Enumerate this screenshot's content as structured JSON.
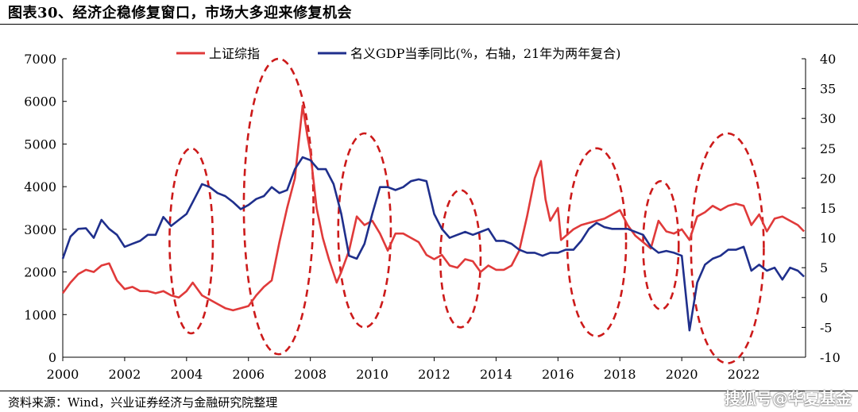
{
  "header": {
    "title": "图表30、经济企稳修复窗口，市场大多迎来修复机会"
  },
  "footer": {
    "source": "资料来源：Wind，兴业证券经济与金融研究院整理",
    "watermark": "搜狐号@华夏基金"
  },
  "chart_data": {
    "type": "line",
    "title": "",
    "x_ticks": [
      "2000",
      "2002",
      "2004",
      "2006",
      "2008",
      "2010",
      "2012",
      "2014",
      "2016",
      "2018",
      "2020",
      "2022"
    ],
    "xlim": [
      2000,
      2024
    ],
    "y_left": {
      "ylim": [
        0,
        7000
      ],
      "ticks": [
        "0",
        "1000",
        "2000",
        "3000",
        "4000",
        "5000",
        "6000",
        "7000"
      ]
    },
    "y_right": {
      "ylim": [
        -10,
        40
      ],
      "ticks": [
        "-10",
        "-5",
        "0",
        "5",
        "10",
        "15",
        "20",
        "25",
        "30",
        "35",
        "40"
      ]
    },
    "grid": false,
    "legend_position": "top",
    "series": [
      {
        "name": "上证综指",
        "axis": "left",
        "color": "#e03a3a",
        "points": [
          [
            2000.0,
            1500
          ],
          [
            2000.25,
            1750
          ],
          [
            2000.5,
            1950
          ],
          [
            2000.75,
            2050
          ],
          [
            2001.0,
            2000
          ],
          [
            2001.25,
            2150
          ],
          [
            2001.5,
            2200
          ],
          [
            2001.75,
            1800
          ],
          [
            2002.0,
            1600
          ],
          [
            2002.25,
            1650
          ],
          [
            2002.5,
            1550
          ],
          [
            2002.75,
            1550
          ],
          [
            2003.0,
            1500
          ],
          [
            2003.25,
            1550
          ],
          [
            2003.5,
            1450
          ],
          [
            2003.75,
            1400
          ],
          [
            2004.0,
            1550
          ],
          [
            2004.2,
            1750
          ],
          [
            2004.5,
            1450
          ],
          [
            2004.75,
            1350
          ],
          [
            2005.0,
            1250
          ],
          [
            2005.25,
            1150
          ],
          [
            2005.5,
            1100
          ],
          [
            2005.75,
            1150
          ],
          [
            2006.0,
            1200
          ],
          [
            2006.25,
            1450
          ],
          [
            2006.5,
            1650
          ],
          [
            2006.75,
            1800
          ],
          [
            2007.0,
            2700
          ],
          [
            2007.25,
            3500
          ],
          [
            2007.5,
            4200
          ],
          [
            2007.75,
            5900
          ],
          [
            2007.9,
            5200
          ],
          [
            2008.0,
            4800
          ],
          [
            2008.2,
            3500
          ],
          [
            2008.4,
            2800
          ],
          [
            2008.6,
            2300
          ],
          [
            2008.85,
            1750
          ],
          [
            2009.0,
            2000
          ],
          [
            2009.25,
            2500
          ],
          [
            2009.5,
            3300
          ],
          [
            2009.75,
            3100
          ],
          [
            2010.0,
            3200
          ],
          [
            2010.25,
            2900
          ],
          [
            2010.5,
            2500
          ],
          [
            2010.75,
            2900
          ],
          [
            2011.0,
            2900
          ],
          [
            2011.25,
            2800
          ],
          [
            2011.5,
            2700
          ],
          [
            2011.75,
            2400
          ],
          [
            2012.0,
            2300
          ],
          [
            2012.25,
            2400
          ],
          [
            2012.5,
            2150
          ],
          [
            2012.75,
            2100
          ],
          [
            2013.0,
            2300
          ],
          [
            2013.25,
            2250
          ],
          [
            2013.5,
            2000
          ],
          [
            2013.75,
            2150
          ],
          [
            2014.0,
            2050
          ],
          [
            2014.25,
            2050
          ],
          [
            2014.5,
            2150
          ],
          [
            2014.75,
            2500
          ],
          [
            2015.0,
            3300
          ],
          [
            2015.25,
            4200
          ],
          [
            2015.45,
            4600
          ],
          [
            2015.6,
            3700
          ],
          [
            2015.75,
            3200
          ],
          [
            2016.0,
            3500
          ],
          [
            2016.1,
            2750
          ],
          [
            2016.5,
            3000
          ],
          [
            2016.75,
            3100
          ],
          [
            2017.0,
            3150
          ],
          [
            2017.25,
            3200
          ],
          [
            2017.5,
            3250
          ],
          [
            2017.75,
            3350
          ],
          [
            2018.0,
            3450
          ],
          [
            2018.25,
            3100
          ],
          [
            2018.5,
            2850
          ],
          [
            2018.75,
            2700
          ],
          [
            2019.0,
            2550
          ],
          [
            2019.25,
            3200
          ],
          [
            2019.5,
            2950
          ],
          [
            2019.75,
            2900
          ],
          [
            2020.0,
            3000
          ],
          [
            2020.25,
            2750
          ],
          [
            2020.5,
            3300
          ],
          [
            2020.75,
            3400
          ],
          [
            2021.0,
            3550
          ],
          [
            2021.25,
            3450
          ],
          [
            2021.5,
            3550
          ],
          [
            2021.75,
            3600
          ],
          [
            2022.0,
            3550
          ],
          [
            2022.25,
            3100
          ],
          [
            2022.5,
            3350
          ],
          [
            2022.75,
            2950
          ],
          [
            2023.0,
            3250
          ],
          [
            2023.25,
            3300
          ],
          [
            2023.5,
            3200
          ],
          [
            2023.75,
            3100
          ],
          [
            2023.95,
            2950
          ]
        ]
      },
      {
        "name": "名义GDP当季同比(%，右轴，21年为两年复合)",
        "axis": "right",
        "color": "#1f2f8c",
        "points": [
          [
            2000.0,
            6.5
          ],
          [
            2000.25,
            10.2
          ],
          [
            2000.5,
            11.5
          ],
          [
            2000.75,
            11.6
          ],
          [
            2001.0,
            10.0
          ],
          [
            2001.25,
            13.0
          ],
          [
            2001.5,
            11.5
          ],
          [
            2001.75,
            10.5
          ],
          [
            2002.0,
            8.5
          ],
          [
            2002.25,
            9.0
          ],
          [
            2002.5,
            9.5
          ],
          [
            2002.75,
            10.5
          ],
          [
            2003.0,
            10.5
          ],
          [
            2003.25,
            13.5
          ],
          [
            2003.5,
            12.0
          ],
          [
            2003.75,
            13.0
          ],
          [
            2004.0,
            14.0
          ],
          [
            2004.25,
            16.5
          ],
          [
            2004.5,
            19.0
          ],
          [
            2004.75,
            18.5
          ],
          [
            2005.0,
            17.5
          ],
          [
            2005.25,
            17.0
          ],
          [
            2005.5,
            16.0
          ],
          [
            2005.75,
            14.8
          ],
          [
            2006.0,
            15.5
          ],
          [
            2006.25,
            16.5
          ],
          [
            2006.5,
            17.0
          ],
          [
            2006.75,
            18.5
          ],
          [
            2007.0,
            17.5
          ],
          [
            2007.25,
            18.0
          ],
          [
            2007.5,
            21.5
          ],
          [
            2007.75,
            23.5
          ],
          [
            2008.0,
            23.0
          ],
          [
            2008.25,
            21.5
          ],
          [
            2008.5,
            21.5
          ],
          [
            2008.75,
            19.0
          ],
          [
            2009.0,
            14.0
          ],
          [
            2009.25,
            7.0
          ],
          [
            2009.5,
            6.5
          ],
          [
            2009.75,
            9.0
          ],
          [
            2010.0,
            14.0
          ],
          [
            2010.25,
            18.5
          ],
          [
            2010.5,
            18.5
          ],
          [
            2010.75,
            18.0
          ],
          [
            2011.0,
            18.5
          ],
          [
            2011.25,
            19.5
          ],
          [
            2011.5,
            19.8
          ],
          [
            2011.75,
            19.5
          ],
          [
            2012.0,
            14.0
          ],
          [
            2012.25,
            11.5
          ],
          [
            2012.5,
            10.0
          ],
          [
            2012.75,
            10.5
          ],
          [
            2013.0,
            11.0
          ],
          [
            2013.25,
            10.5
          ],
          [
            2013.5,
            11.0
          ],
          [
            2013.75,
            11.5
          ],
          [
            2014.0,
            9.5
          ],
          [
            2014.25,
            9.5
          ],
          [
            2014.5,
            9.0
          ],
          [
            2014.75,
            8.0
          ],
          [
            2015.0,
            7.5
          ],
          [
            2015.25,
            7.5
          ],
          [
            2015.5,
            7.0
          ],
          [
            2015.75,
            7.5
          ],
          [
            2016.0,
            7.5
          ],
          [
            2016.25,
            8.0
          ],
          [
            2016.5,
            8.0
          ],
          [
            2016.75,
            9.5
          ],
          [
            2017.0,
            11.5
          ],
          [
            2017.25,
            12.5
          ],
          [
            2017.5,
            11.8
          ],
          [
            2017.75,
            11.5
          ],
          [
            2018.0,
            11.5
          ],
          [
            2018.25,
            11.5
          ],
          [
            2018.5,
            11.0
          ],
          [
            2018.75,
            10.5
          ],
          [
            2019.0,
            8.5
          ],
          [
            2019.25,
            7.5
          ],
          [
            2019.5,
            7.8
          ],
          [
            2019.75,
            7.5
          ],
          [
            2020.0,
            7.0
          ],
          [
            2020.25,
            -5.5
          ],
          [
            2020.5,
            2.5
          ],
          [
            2020.75,
            5.5
          ],
          [
            2021.0,
            6.5
          ],
          [
            2021.25,
            7.0
          ],
          [
            2021.5,
            8.0
          ],
          [
            2021.75,
            8.0
          ],
          [
            2022.0,
            8.5
          ],
          [
            2022.25,
            4.5
          ],
          [
            2022.5,
            5.5
          ],
          [
            2022.75,
            4.5
          ],
          [
            2023.0,
            5.0
          ],
          [
            2023.25,
            3.0
          ],
          [
            2023.5,
            5.0
          ],
          [
            2023.75,
            4.5
          ],
          [
            2023.95,
            3.5
          ]
        ]
      }
    ],
    "annotations": [
      {
        "type": "dashed-ellipse",
        "color": "#cc1a1a",
        "x_range": [
          2003.45,
          2004.85
        ],
        "y_range": [
          -6,
          25
        ]
      },
      {
        "type": "dashed-ellipse",
        "color": "#cc1a1a",
        "x_range": [
          2005.85,
          2008.1
        ],
        "y_range": [
          -9.5,
          40
        ]
      },
      {
        "type": "dashed-ellipse",
        "color": "#cc1a1a",
        "x_range": [
          2008.9,
          2010.6
        ],
        "y_range": [
          -5,
          27.5
        ]
      },
      {
        "type": "dashed-ellipse",
        "color": "#cc1a1a",
        "x_range": [
          2012.2,
          2013.5
        ],
        "y_range": [
          -5,
          18
        ]
      },
      {
        "type": "dashed-ellipse",
        "color": "#cc1a1a",
        "x_range": [
          2016.3,
          2018.2
        ],
        "y_range": [
          -6.5,
          25
        ]
      },
      {
        "type": "dashed-ellipse",
        "color": "#cc1a1a",
        "x_range": [
          2018.75,
          2019.9
        ],
        "y_range": [
          -2,
          19.5
        ]
      },
      {
        "type": "dashed-ellipse",
        "color": "#cc1a1a",
        "x_range": [
          2020.3,
          2022.65
        ],
        "y_range": [
          -11,
          27.5
        ]
      }
    ]
  }
}
